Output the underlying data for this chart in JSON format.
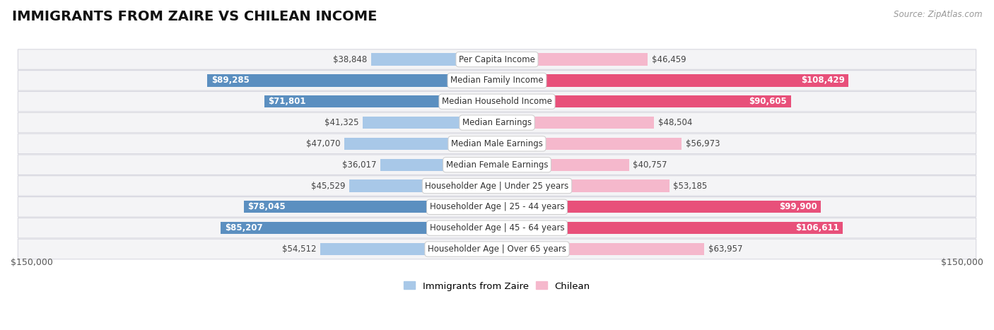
{
  "title": "IMMIGRANTS FROM ZAIRE VS CHILEAN INCOME",
  "source": "Source: ZipAtlas.com",
  "categories": [
    "Per Capita Income",
    "Median Family Income",
    "Median Household Income",
    "Median Earnings",
    "Median Male Earnings",
    "Median Female Earnings",
    "Householder Age | Under 25 years",
    "Householder Age | 25 - 44 years",
    "Householder Age | 45 - 64 years",
    "Householder Age | Over 65 years"
  ],
  "zaire_values": [
    38848,
    89285,
    71801,
    41325,
    47070,
    36017,
    45529,
    78045,
    85207,
    54512
  ],
  "chilean_values": [
    46459,
    108429,
    90605,
    48504,
    56973,
    40757,
    53185,
    99900,
    106611,
    63957
  ],
  "zaire_labels": [
    "$38,848",
    "$89,285",
    "$71,801",
    "$41,325",
    "$47,070",
    "$36,017",
    "$45,529",
    "$78,045",
    "$85,207",
    "$54,512"
  ],
  "chilean_labels": [
    "$46,459",
    "$108,429",
    "$90,605",
    "$48,504",
    "$56,973",
    "$40,757",
    "$53,185",
    "$99,900",
    "$106,611",
    "$63,957"
  ],
  "zaire_color_light": "#a8c8e8",
  "zaire_color_dark": "#5b8fc0",
  "chilean_color_light": "#f5b8cc",
  "chilean_color_dark": "#e8507a",
  "max_value": 150000,
  "background_color": "#ffffff",
  "row_bg_color": "#f4f4f6",
  "row_border_color": "#d8d8e0",
  "title_fontsize": 14,
  "label_fontsize": 8.5,
  "cat_fontsize": 8.5,
  "legend_fontsize": 9.5,
  "axis_label": "$150,000",
  "bar_height": 0.58,
  "large_threshold": 65000,
  "inside_label_color": "#ffffff"
}
